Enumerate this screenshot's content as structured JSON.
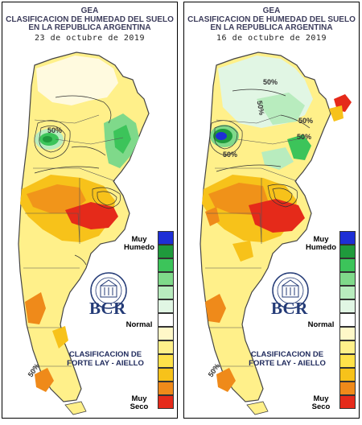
{
  "panels": [
    {
      "org": "GEA",
      "title_line1": "CLASIFICACION DE HUMEDAD DEL SUELO",
      "title_line2": "EN LA REPUBLICA ARGENTINA",
      "date": "23 de octubre de 2019",
      "contour_labels": [
        "50%",
        "50%"
      ],
      "legend": {
        "top_label_1": "Muy",
        "top_label_2": "Humedo",
        "mid_label": "Normal",
        "bottom_label_1": "Muy",
        "bottom_label_2": "Seco"
      },
      "logo_text": "BCR",
      "classification_line1": "CLASIFICACION DE",
      "classification_line2": "FORTE LAY - AIELLO"
    },
    {
      "org": "GEA",
      "title_line1": "CLASIFICACION DE HUMEDAD DEL SUELO",
      "title_line2": "EN LA REPUBLICA ARGENTINA",
      "date": "16 de octubre de 2019",
      "contour_labels": [
        "50%",
        "50%",
        "50%",
        "50%",
        "50%",
        "50%"
      ],
      "legend": {
        "top_label_1": "Muy",
        "top_label_2": "Humedo",
        "mid_label": "Normal",
        "bottom_label_1": "Muy",
        "bottom_label_2": "Seco"
      },
      "logo_text": "BCR",
      "classification_line1": "CLASIFICACION DE",
      "classification_line2": "FORTE LAY - AIELLO"
    }
  ],
  "legend_colors": [
    "#1e2fd6",
    "#1f9a3c",
    "#3cc45a",
    "#7fd98a",
    "#b8ecbe",
    "#e1f6e4",
    "#ffffff",
    "#fff8c8",
    "#fff08a",
    "#ffe24a",
    "#f7c21a",
    "#ef8a1a",
    "#e52a1a"
  ]
}
